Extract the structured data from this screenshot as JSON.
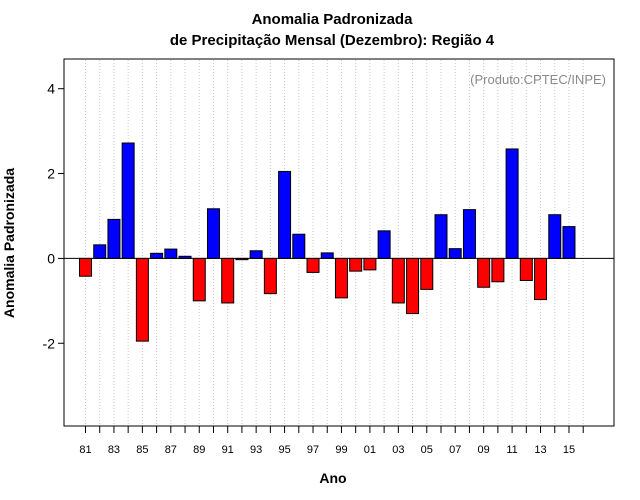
{
  "chart_data": {
    "type": "bar",
    "title_line1": "Anomalia Padronizada",
    "title_line2": "de Precipitação Mensal (Dezembro): Região 4",
    "xlabel": "Ano",
    "ylabel": "Anomalia Padronizada",
    "annotation": "(Produto:CPTEC/INPE)",
    "ylim": [
      -3.95,
      4.7
    ],
    "yticks": [
      -2,
      0,
      2,
      4
    ],
    "ytick_labels": [
      "-2",
      "0",
      "2",
      "4"
    ],
    "grid": true,
    "positive_color": "#0000ff",
    "negative_color": "#ff0000",
    "years": [
      1981,
      1982,
      1983,
      1984,
      1985,
      1986,
      1987,
      1988,
      1989,
      1990,
      1991,
      1992,
      1993,
      1994,
      1995,
      1996,
      1997,
      1998,
      1999,
      2000,
      2001,
      2002,
      2003,
      2004,
      2005,
      2006,
      2007,
      2008,
      2009,
      2010,
      2011,
      2012,
      2013,
      2014,
      2015
    ],
    "values": [
      -0.42,
      0.32,
      0.92,
      2.72,
      -1.95,
      0.12,
      0.22,
      0.05,
      -1.0,
      1.17,
      -1.05,
      -0.03,
      0.18,
      -0.83,
      2.05,
      0.57,
      -0.33,
      0.13,
      -0.93,
      -0.3,
      -0.27,
      0.65,
      -1.05,
      -1.3,
      -0.73,
      1.03,
      0.23,
      1.15,
      -0.68,
      -0.55,
      2.58,
      -0.52,
      -0.97,
      1.03,
      0.75
    ],
    "xtick_labels": [
      "81",
      "83",
      "85",
      "87",
      "89",
      "91",
      "93",
      "95",
      "97",
      "99",
      "01",
      "03",
      "05",
      "07",
      "09",
      "11",
      "13",
      "15"
    ]
  }
}
